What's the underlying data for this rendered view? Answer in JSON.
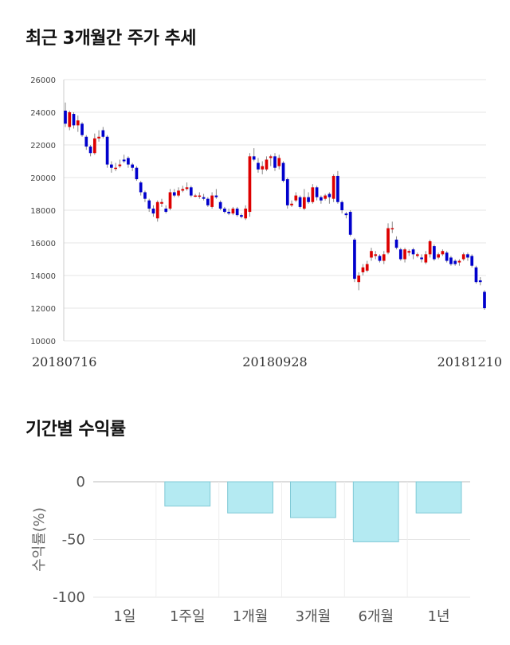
{
  "titles": {
    "price_trend": "최근 3개월간 주가 추세",
    "period_return": "기간별 수익률"
  },
  "chart_data": [
    {
      "type": "candlestick",
      "title": "최근 3개월간 주가 추세",
      "ylim": [
        10000,
        26000
      ],
      "yticks": [
        10000,
        12000,
        14000,
        16000,
        18000,
        20000,
        22000,
        24000,
        26000
      ],
      "x_labels": [
        "20180716",
        "20180928",
        "20181210"
      ],
      "colors": {
        "up": "#dd0000",
        "down": "#0000cc",
        "wick": "#888888",
        "grid": "#e6e6e6"
      },
      "candles": [
        [
          24100,
          23300,
          24600,
          23100
        ],
        [
          23100,
          24000,
          24100,
          22900
        ],
        [
          23900,
          23200,
          24000,
          23000
        ],
        [
          23200,
          23500,
          23800,
          22800
        ],
        [
          23300,
          22600,
          23400,
          22500
        ],
        [
          22500,
          21900,
          22600,
          21700
        ],
        [
          21900,
          21500,
          22000,
          21300
        ],
        [
          21500,
          22400,
          22700,
          21400
        ],
        [
          22400,
          22500,
          22900,
          22200
        ],
        [
          22900,
          22500,
          23100,
          22400
        ],
        [
          22500,
          20800,
          22600,
          20600
        ],
        [
          20800,
          20600,
          21000,
          20300
        ],
        [
          20600,
          20600,
          20900,
          20400
        ],
        [
          20700,
          20800,
          21100,
          20600
        ],
        [
          21100,
          21000,
          21400,
          20900
        ],
        [
          21200,
          20800,
          21300,
          20600
        ],
        [
          20800,
          20600,
          20900,
          20400
        ],
        [
          20600,
          19900,
          20700,
          19800
        ],
        [
          19700,
          19100,
          19800,
          18900
        ],
        [
          19100,
          18700,
          19200,
          18500
        ],
        [
          18600,
          18100,
          18700,
          17900
        ],
        [
          18100,
          17800,
          18300,
          17600
        ],
        [
          17500,
          18500,
          18600,
          17300
        ],
        [
          18400,
          18500,
          18700,
          18200
        ],
        [
          18100,
          17900,
          18300,
          17800
        ],
        [
          18100,
          19100,
          19300,
          18000
        ],
        [
          19100,
          18900,
          19300,
          18800
        ],
        [
          18900,
          19200,
          19400,
          18800
        ],
        [
          19200,
          19300,
          19500,
          19100
        ],
        [
          19300,
          19400,
          19700,
          19200
        ],
        [
          19400,
          18900,
          19500,
          18800
        ],
        [
          18900,
          18900,
          19000,
          18800
        ],
        [
          18900,
          18900,
          19100,
          18700
        ],
        [
          18800,
          18700,
          19000,
          18600
        ],
        [
          18700,
          18300,
          18800,
          18200
        ],
        [
          18200,
          18900,
          19100,
          18100
        ],
        [
          18900,
          18800,
          19300,
          18700
        ],
        [
          18500,
          18100,
          18600,
          18000
        ],
        [
          18100,
          17900,
          18200,
          17800
        ],
        [
          17900,
          17800,
          18100,
          17700
        ],
        [
          17800,
          18100,
          18200,
          17700
        ],
        [
          18100,
          17700,
          18200,
          17600
        ],
        [
          17700,
          17600,
          17800,
          17500
        ],
        [
          17500,
          18100,
          18300,
          17400
        ],
        [
          17900,
          21300,
          21500,
          17600
        ],
        [
          21300,
          21100,
          21800,
          21000
        ],
        [
          20900,
          20500,
          21200,
          20300
        ],
        [
          20500,
          20700,
          21000,
          20200
        ],
        [
          20500,
          21100,
          21300,
          20400
        ],
        [
          21200,
          21300,
          21400,
          20700
        ],
        [
          21300,
          20600,
          21500,
          20400
        ],
        [
          20700,
          21200,
          21400,
          20500
        ],
        [
          20900,
          19800,
          21000,
          19700
        ],
        [
          19900,
          18300,
          20000,
          18100
        ],
        [
          18300,
          18400,
          18600,
          18200
        ],
        [
          18600,
          18900,
          19100,
          18500
        ],
        [
          18800,
          18200,
          18900,
          18100
        ],
        [
          18100,
          18800,
          19300,
          18000
        ],
        [
          18800,
          18500,
          19100,
          18400
        ],
        [
          18500,
          19400,
          19600,
          18400
        ],
        [
          19400,
          18800,
          19500,
          18600
        ],
        [
          18800,
          18600,
          18900,
          18400
        ],
        [
          18700,
          18900,
          19000,
          18600
        ],
        [
          19000,
          18800,
          19100,
          18400
        ],
        [
          18700,
          20100,
          20200,
          18500
        ],
        [
          20100,
          18500,
          20400,
          18400
        ],
        [
          18500,
          18000,
          18600,
          17800
        ],
        [
          17800,
          17700,
          17900,
          17500
        ],
        [
          17900,
          16500,
          18000,
          16400
        ],
        [
          16200,
          13800,
          16300,
          13600
        ],
        [
          13600,
          14000,
          14200,
          13100
        ],
        [
          14200,
          14500,
          14700,
          14000
        ],
        [
          14300,
          14700,
          14900,
          14200
        ],
        [
          15100,
          15500,
          15700,
          14900
        ],
        [
          15200,
          15300,
          15500,
          15000
        ],
        [
          15200,
          14900,
          15300,
          14800
        ],
        [
          14900,
          15300,
          15500,
          14700
        ],
        [
          15400,
          16900,
          17200,
          15300
        ],
        [
          16900,
          16900,
          17300,
          16600
        ],
        [
          16200,
          15700,
          16400,
          15600
        ],
        [
          15600,
          15000,
          15700,
          14900
        ],
        [
          15000,
          15600,
          15700,
          14800
        ],
        [
          15400,
          15500,
          15600,
          15200
        ],
        [
          15600,
          15300,
          15700,
          15000
        ],
        [
          15200,
          15300,
          15400,
          15100
        ],
        [
          15100,
          15000,
          15300,
          14800
        ],
        [
          14800,
          15300,
          15500,
          14700
        ],
        [
          15300,
          16100,
          16200,
          15100
        ],
        [
          15800,
          15000,
          15900,
          14900
        ],
        [
          15100,
          15300,
          15400,
          15000
        ],
        [
          15300,
          15500,
          15600,
          15200
        ],
        [
          15400,
          14900,
          15500,
          14800
        ],
        [
          15100,
          14700,
          15200,
          14600
        ],
        [
          14900,
          14700,
          15000,
          14600
        ],
        [
          14800,
          14900,
          15000,
          14600
        ],
        [
          15000,
          15300,
          15400,
          14900
        ],
        [
          15300,
          15100,
          15400,
          14900
        ],
        [
          15200,
          14600,
          15300,
          14500
        ],
        [
          14500,
          13600,
          14600,
          13500
        ],
        [
          13700,
          13600,
          13900,
          13400
        ],
        [
          13000,
          12000,
          13100,
          11900
        ]
      ]
    },
    {
      "type": "bar",
      "title": "기간별 수익률",
      "ylabel": "수익률(%)",
      "ylim": [
        -100,
        0
      ],
      "yticks": [
        0,
        -50,
        -100
      ],
      "categories": [
        "1일",
        "1주일",
        "1개월",
        "3개월",
        "6개월",
        "1년"
      ],
      "values": [
        0,
        -21,
        -27,
        -31,
        -52,
        -27
      ],
      "colors": {
        "bar": "#b4eaf2",
        "bar_border": "#7fc9d6"
      }
    }
  ]
}
